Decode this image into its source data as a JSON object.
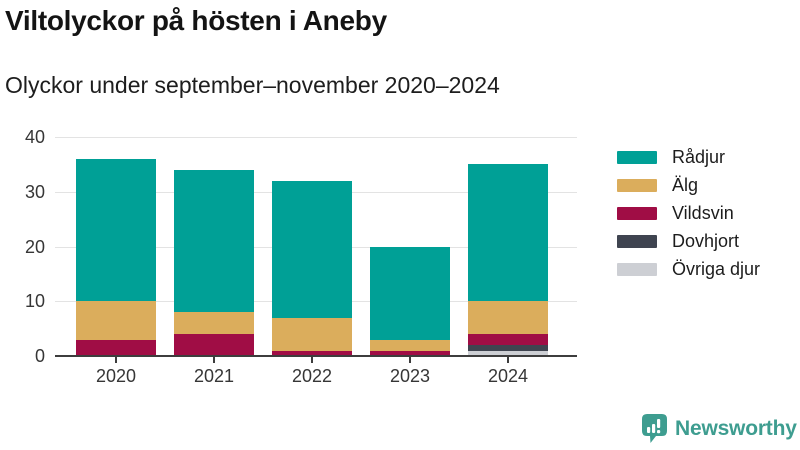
{
  "chart_data": {
    "type": "bar",
    "stacked": true,
    "title": "Viltolyckor på hösten i Aneby",
    "subtitle": "Olyckor under september–november 2020–2024",
    "categories": [
      "2020",
      "2021",
      "2022",
      "2023",
      "2024"
    ],
    "series": [
      {
        "name": "Rådjur",
        "color": "#00A096",
        "values": [
          26,
          26,
          25,
          17,
          25
        ]
      },
      {
        "name": "Älg",
        "color": "#DBAD5C",
        "values": [
          7,
          4,
          6,
          2,
          6
        ]
      },
      {
        "name": "Vildsvin",
        "color": "#A00D45",
        "values": [
          3,
          4,
          1,
          1,
          2
        ]
      },
      {
        "name": "Dovhjort",
        "color": "#3F4450",
        "values": [
          0,
          0,
          0,
          0,
          1
        ]
      },
      {
        "name": "Övriga djur",
        "color": "#CDCFD4",
        "values": [
          0,
          0,
          0,
          0,
          1
        ]
      }
    ],
    "totals": [
      36,
      34,
      32,
      20,
      35
    ],
    "xlabel": "",
    "ylabel": "",
    "ylim": [
      0,
      40
    ],
    "yticks": [
      0,
      10,
      20,
      30,
      40
    ],
    "grid": true,
    "legend_position": "right",
    "grid_color": "#E3E3E3",
    "axis_color": "#3D3D3D",
    "tick_text_color": "#363636"
  },
  "footer": {
    "brand": "Newsworthy",
    "brand_color": "#3E9D90"
  }
}
